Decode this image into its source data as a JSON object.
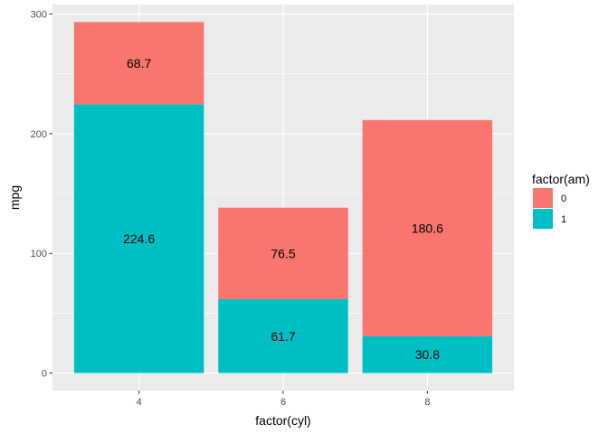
{
  "chart_data": {
    "type": "bar",
    "stacked": true,
    "categories": [
      "4",
      "6",
      "8"
    ],
    "series": [
      {
        "name": "0",
        "values": [
          68.7,
          76.5,
          180.6
        ],
        "color": "#F8766D"
      },
      {
        "name": "1",
        "values": [
          224.6,
          61.7,
          30.8
        ],
        "color": "#00BFC4"
      }
    ],
    "xlabel": "factor(cyl)",
    "ylabel": "mpg",
    "ylim": [
      -14.66,
      307.96
    ],
    "yticks": [
      0,
      100,
      200,
      300
    ],
    "legend": {
      "title": "factor(am)",
      "position": "right"
    },
    "grid": true,
    "panel_background": "#EBEBEB",
    "grid_color": "#FFFFFF"
  }
}
